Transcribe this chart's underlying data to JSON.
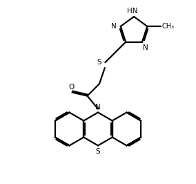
{
  "bg_color": "#ffffff",
  "line_color": "#000000",
  "line_width": 1.6,
  "font_size": 7.5,
  "figsize": [
    2.84,
    2.66
  ],
  "dpi": 100,
  "xlim": [
    0,
    10
  ],
  "ylim": [
    0,
    9.4
  ]
}
